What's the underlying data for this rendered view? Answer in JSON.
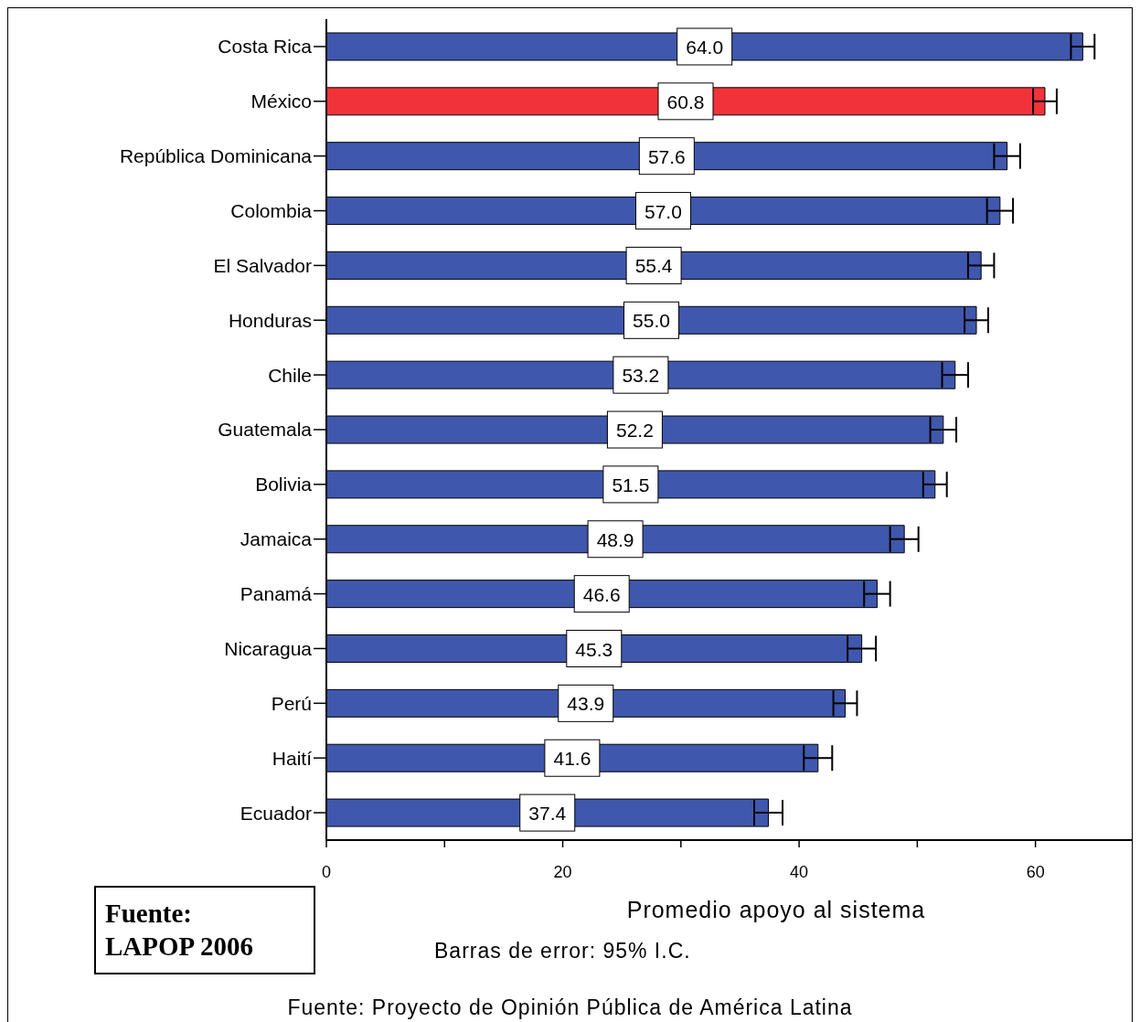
{
  "chart_data": {
    "type": "bar",
    "orientation": "horizontal",
    "xlabel": "Promedio apoyo al sistema",
    "categories": [
      "Costa Rica",
      "México",
      "República Dominicana",
      "Colombia",
      "El Salvador",
      "Honduras",
      "Chile",
      "Guatemala",
      "Bolivia",
      "Jamaica",
      "Panamá",
      "Nicaragua",
      "Perú",
      "Haití",
      "Ecuador"
    ],
    "values": [
      64.0,
      60.8,
      57.6,
      57.0,
      55.4,
      55.0,
      53.2,
      52.2,
      51.5,
      48.9,
      46.6,
      45.3,
      43.9,
      41.6,
      37.4
    ],
    "value_labels": [
      "64.0",
      "60.8",
      "57.6",
      "57.0",
      "55.4",
      "55.0",
      "53.2",
      "52.2",
      "51.5",
      "48.9",
      "46.6",
      "45.3",
      "43.9",
      "41.6",
      "37.4"
    ],
    "errors": [
      1.0,
      1.0,
      1.1,
      1.1,
      1.1,
      1.0,
      1.1,
      1.1,
      1.0,
      1.2,
      1.1,
      1.2,
      1.0,
      1.2,
      1.2
    ],
    "colors": [
      "#3f58ad",
      "#f2323a",
      "#3f58ad",
      "#3f58ad",
      "#3f58ad",
      "#3f58ad",
      "#3f58ad",
      "#3f58ad",
      "#3f58ad",
      "#3f58ad",
      "#3f58ad",
      "#3f58ad",
      "#3f58ad",
      "#3f58ad",
      "#3f58ad"
    ],
    "xlim": [
      0,
      69
    ],
    "xticks": [
      0,
      {
        "value": 10,
        "label": null
      },
      20,
      {
        "value": 30,
        "label": null
      },
      40,
      {
        "value": 50,
        "label": null
      },
      60
    ],
    "grid": false,
    "legend": false,
    "annotations": [
      "Barras de error: 95% I.C.",
      "Fuente:\nLAPOP 2006",
      "Fuente: Proyecto de Opinión Pública de América Latina"
    ]
  }
}
